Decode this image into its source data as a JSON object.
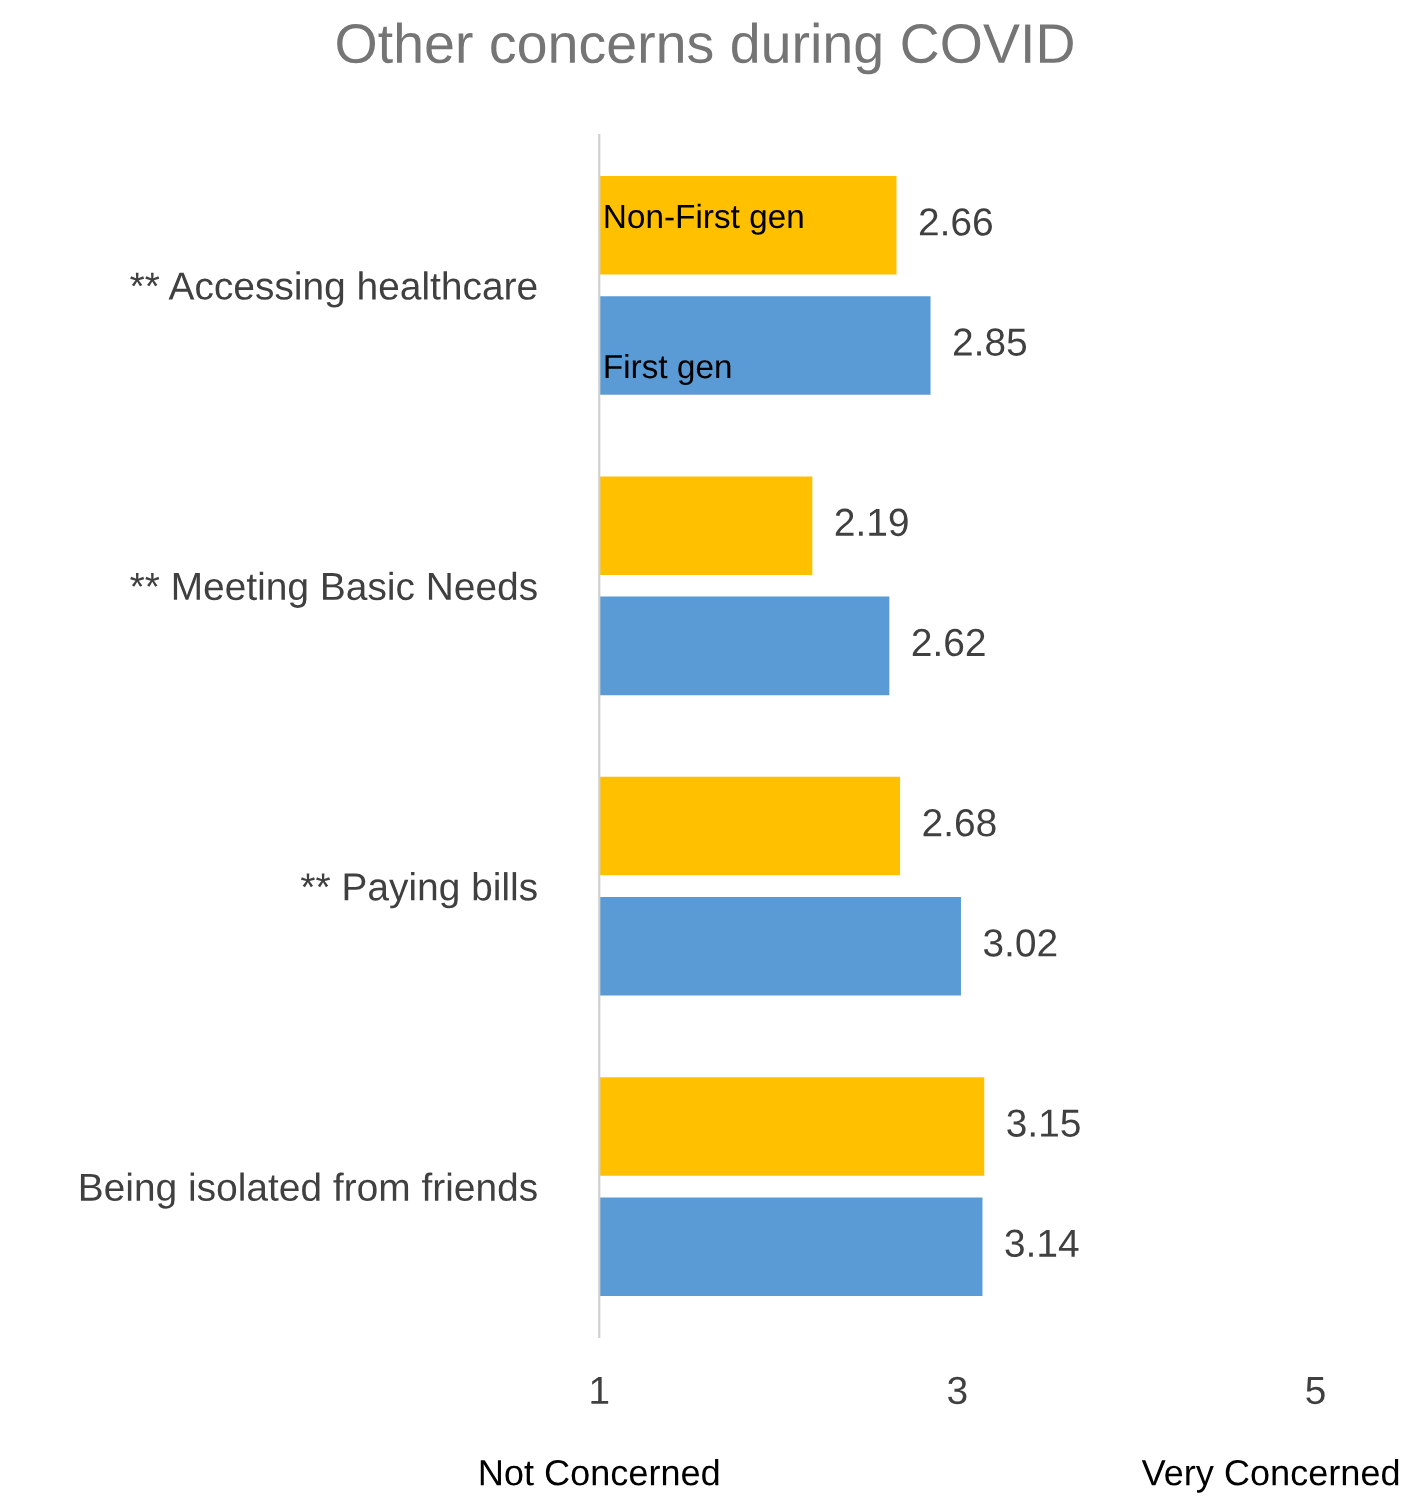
{
  "chart_data": {
    "type": "bar",
    "orientation": "horizontal",
    "title": "Other concerns during COVID",
    "categories": [
      "** Accessing healthcare",
      "** Meeting Basic Needs",
      "** Paying bills",
      "Being isolated from friends"
    ],
    "series": [
      {
        "name": "Non-First gen",
        "color": "#ffc000",
        "values": [
          2.66,
          2.19,
          2.68,
          3.15
        ]
      },
      {
        "name": "First gen",
        "color": "#5b9bd5",
        "values": [
          2.85,
          2.62,
          3.02,
          3.14
        ]
      }
    ],
    "xlim": [
      1,
      5
    ],
    "xticks": [
      1,
      3,
      5
    ],
    "data_labels": true,
    "grid": false,
    "legend": false,
    "annotations": [
      "Not Concerned",
      "Very Concerned"
    ]
  }
}
